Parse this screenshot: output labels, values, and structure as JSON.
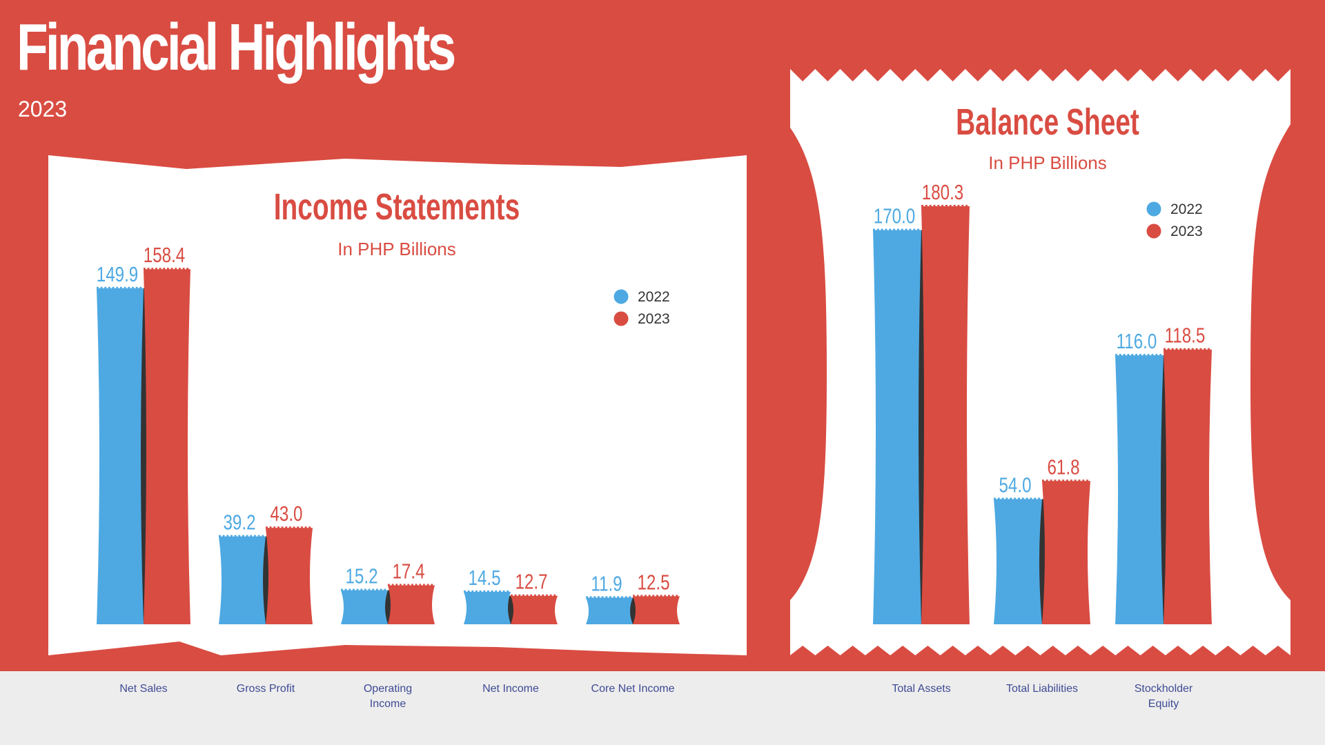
{
  "header": {
    "title": "Financial Highlights",
    "subtitle": "2023"
  },
  "colors": {
    "background": "#D94C42",
    "footer": "#EDEDED",
    "panel": "#FFFFFF",
    "series_2022": "#4EA9E2",
    "series_2023": "#D94C42",
    "divider": "#333333",
    "category_label": "#3E4A93",
    "legend_text": "#333333"
  },
  "chart_data": [
    {
      "type": "bar",
      "title": "Income Statements",
      "subtitle": "In PHP Billions",
      "categories": [
        "Net Sales",
        "Gross Profit",
        "Operating\nIncome",
        "Net Income",
        "Core Net Income"
      ],
      "series": [
        {
          "name": "2022",
          "values": [
            149.9,
            39.2,
            15.2,
            14.5,
            11.9
          ]
        },
        {
          "name": "2023",
          "values": [
            158.4,
            43.0,
            17.4,
            12.7,
            12.5
          ]
        }
      ],
      "value_labels_2022": [
        "149.9",
        "39.2",
        "15.2",
        "14.5",
        "11.9"
      ],
      "value_labels_2023": [
        "158.4",
        "43.0",
        "17.4",
        "12.7",
        "12.5"
      ],
      "legend": {
        "placement": "top-right",
        "items": [
          "2022",
          "2023"
        ]
      },
      "ylim": [
        0,
        160
      ],
      "grid": false
    },
    {
      "type": "bar",
      "title": "Balance Sheet",
      "subtitle": "In PHP Billions",
      "categories": [
        "Total Assets",
        "Total Liabilities",
        "Stockholder\nEquity"
      ],
      "series": [
        {
          "name": "2022",
          "values": [
            170.0,
            54.0,
            116.0
          ]
        },
        {
          "name": "2023",
          "values": [
            180.3,
            61.8,
            118.5
          ]
        }
      ],
      "value_labels_2022": [
        "170.0",
        "54.0",
        "116.0"
      ],
      "value_labels_2023": [
        "180.3",
        "61.8",
        "118.5"
      ],
      "legend": {
        "placement": "top-right",
        "items": [
          "2022",
          "2023"
        ]
      },
      "ylim": [
        0,
        180
      ],
      "grid": false
    }
  ]
}
